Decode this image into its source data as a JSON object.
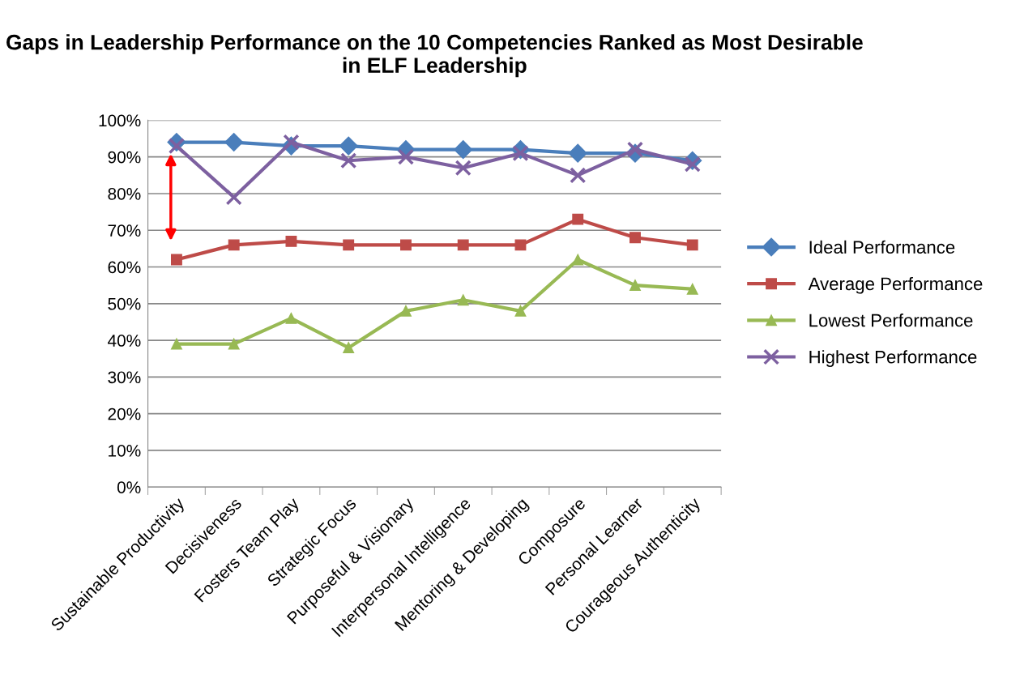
{
  "chart_data": {
    "type": "line",
    "title": "Gaps in Leadership Performance on the 10 Competencies Ranked as Most Desirable in ELF Leadership",
    "categories": [
      "Sustainable Productivity",
      "Decisiveness",
      "Fosters Team Play",
      "Strategic Focus",
      "Purposeful & Visionary",
      "Interpersonal Intelligence",
      "Mentoring & Developing",
      "Composure",
      "Personal Learner",
      "Courageous Authenticity"
    ],
    "series": [
      {
        "name": "Ideal Performance",
        "color": "#4a7ebb",
        "marker": "diamond",
        "values": [
          94,
          94,
          93,
          93,
          92,
          92,
          92,
          91,
          91,
          89
        ]
      },
      {
        "name": "Average Performance",
        "color": "#be4b48",
        "marker": "square",
        "values": [
          62,
          66,
          67,
          66,
          66,
          66,
          66,
          73,
          68,
          66
        ]
      },
      {
        "name": "Lowest Performance",
        "color": "#98b954",
        "marker": "triangle",
        "values": [
          39,
          39,
          46,
          38,
          48,
          51,
          48,
          62,
          55,
          54
        ]
      },
      {
        "name": "Highest Performance",
        "color": "#7d60a0",
        "marker": "cross",
        "values": [
          93,
          79,
          94,
          89,
          90,
          87,
          91,
          85,
          92,
          88
        ]
      }
    ],
    "ylim": [
      0,
      100
    ],
    "yticks": [
      {
        "value": 0,
        "label": "0%"
      },
      {
        "value": 10,
        "label": "10%"
      },
      {
        "value": 20,
        "label": "20%"
      },
      {
        "value": 30,
        "label": "30%"
      },
      {
        "value": 40,
        "label": "40%"
      },
      {
        "value": 50,
        "label": "50%"
      },
      {
        "value": 60,
        "label": "60%"
      },
      {
        "value": 70,
        "label": "70%"
      },
      {
        "value": 80,
        "label": "80%"
      },
      {
        "value": 90,
        "label": "90%"
      },
      {
        "value": 100,
        "label": "100%"
      }
    ],
    "grid": "y",
    "legend": "right",
    "line_style": "solid"
  }
}
